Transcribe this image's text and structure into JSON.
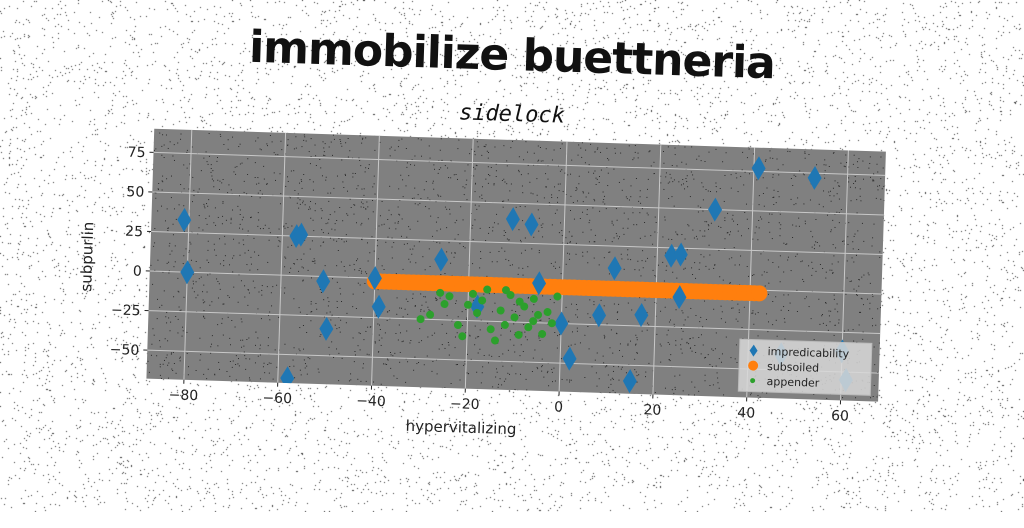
{
  "page": {
    "title": "immobilize buettneria",
    "subtitle": "sidelock"
  },
  "colors": {
    "background": "#ffffff",
    "plot_bg": "#808080",
    "grid": "#c8c8c8",
    "series_1": "#1f77b4",
    "series_2": "#ff7f0e",
    "series_3": "#2ca02c"
  },
  "chart_data": {
    "type": "scatter",
    "title": "sidelock",
    "xlabel": "hypervitalizing",
    "ylabel": "subpurlin",
    "xlim": [
      -88,
      68
    ],
    "ylim": [
      -68,
      90
    ],
    "xticks": [
      -80,
      -60,
      -40,
      -20,
      0,
      20,
      40,
      60
    ],
    "yticks": [
      -50,
      -25,
      0,
      25,
      50,
      75
    ],
    "grid": true,
    "legend_position": "bottom-right",
    "series": [
      {
        "name": "impredicability",
        "marker": "diamond",
        "color": "#1f77b4",
        "points": [
          [
            -81,
            33
          ],
          [
            -80,
            0
          ],
          [
            -57,
            25
          ],
          [
            -56,
            26
          ],
          [
            -58,
            -65
          ],
          [
            -51,
            -3
          ],
          [
            -50,
            -33
          ],
          [
            -40,
            0
          ],
          [
            -39,
            -18
          ],
          [
            -26,
            13
          ],
          [
            -18,
            -16
          ],
          [
            -11,
            40
          ],
          [
            -7,
            37
          ],
          [
            -5,
            0
          ],
          [
            0,
            -25
          ],
          [
            2,
            -47
          ],
          [
            8,
            -19
          ],
          [
            11,
            11
          ],
          [
            15,
            -60
          ],
          [
            17,
            -18
          ],
          [
            23,
            20
          ],
          [
            25,
            21
          ],
          [
            25,
            -6
          ],
          [
            32,
            50
          ],
          [
            41,
            77
          ],
          [
            47,
            -40
          ],
          [
            53,
            72
          ],
          [
            60,
            -37
          ],
          [
            61,
            -55
          ]
        ]
      },
      {
        "name": "subsoiled",
        "marker": "circle",
        "color": "#ff7f0e",
        "x_range": [
          -40,
          42
        ],
        "y_value": -2,
        "count": 80
      },
      {
        "name": "appender",
        "marker": "point",
        "color": "#2ca02c",
        "points": [
          [
            -30,
            -25
          ],
          [
            -28,
            -22
          ],
          [
            -26,
            -8
          ],
          [
            -25,
            -15
          ],
          [
            -24,
            -10
          ],
          [
            -22,
            -28
          ],
          [
            -21,
            -35
          ],
          [
            -19,
            -8
          ],
          [
            -18,
            -20
          ],
          [
            -17,
            -12
          ],
          [
            -15,
            -30
          ],
          [
            -14,
            -37
          ],
          [
            -13,
            -18
          ],
          [
            -12,
            -27
          ],
          [
            -11,
            -8
          ],
          [
            -10,
            -22
          ],
          [
            -9,
            -33
          ],
          [
            -8,
            -15
          ],
          [
            -7,
            -28
          ],
          [
            -6,
            -10
          ],
          [
            -5,
            -20
          ],
          [
            -4,
            -32
          ],
          [
            -3,
            -18
          ],
          [
            -2,
            -25
          ],
          [
            -1,
            -8
          ],
          [
            -16,
            -5
          ],
          [
            -12,
            -5
          ],
          [
            -9,
            -12
          ],
          [
            -6,
            -24
          ],
          [
            -20,
            -15
          ]
        ]
      }
    ]
  }
}
